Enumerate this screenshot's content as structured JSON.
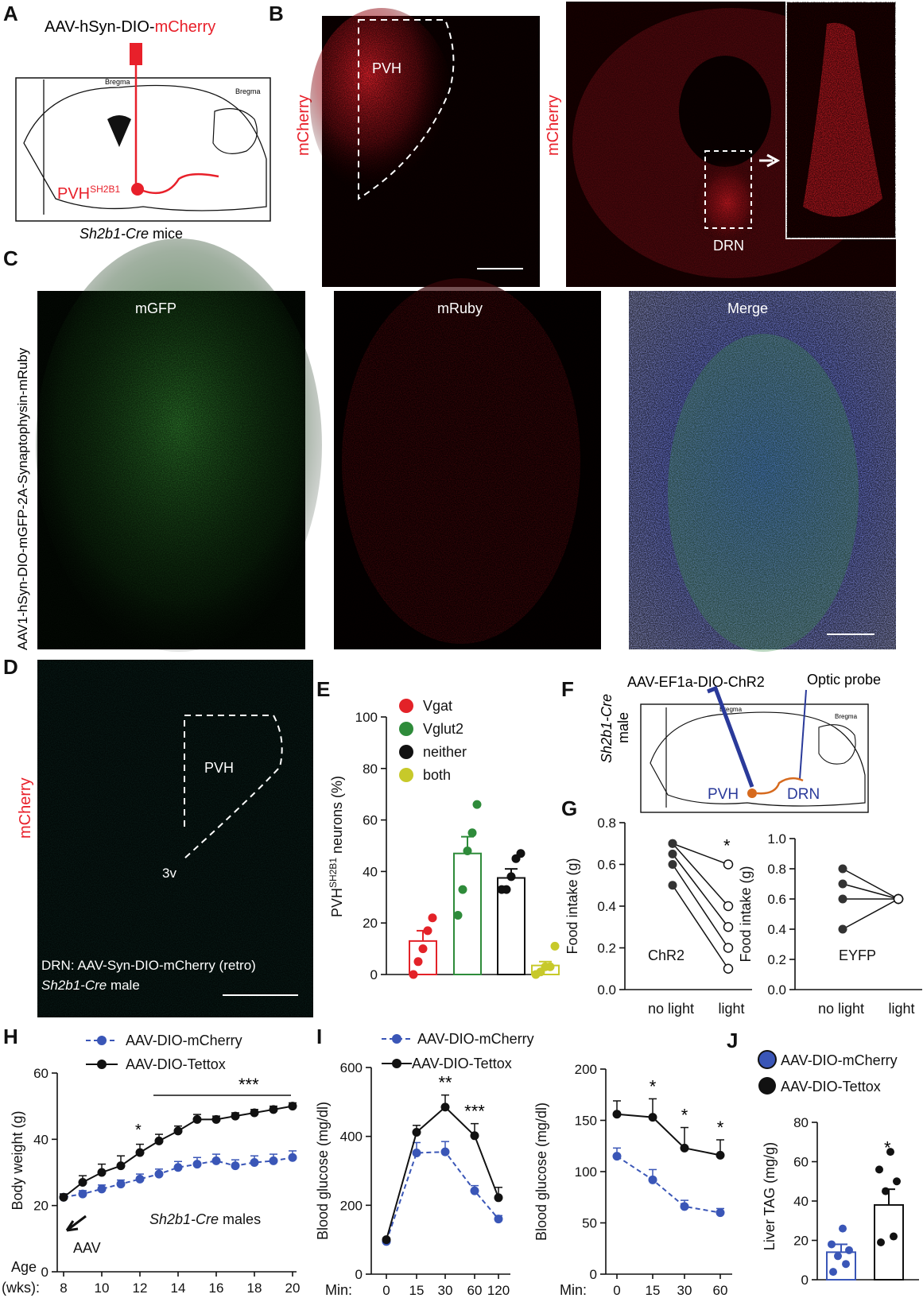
{
  "colors": {
    "mcherry_red": "#e8202a",
    "mcherry_blue_series": "#3a56b7",
    "tettox_black": "#111111",
    "vgat": "#e32228",
    "vglut2": "#2e8b3a",
    "neither": "#111111",
    "both": "#c7c92a",
    "chr2_blue": "#2a3a9a",
    "projection_orange": "#d66a1e"
  },
  "panels": {
    "A": {
      "label": "A",
      "virus": "AAV-hSyn-DIO-",
      "virus_red": "mCherry",
      "bregma1": "Bregma",
      "bregma2": "Bregma",
      "pvh_label": "PVH",
      "pvh_sup": "SH2B1",
      "mice_label": "Sh2b1-Cre",
      "mice_suffix": " mice"
    },
    "B": {
      "label": "B",
      "left_side": "mCherry",
      "pvh": "PVH",
      "right_side": "mCherry",
      "drn": "DRN"
    },
    "C": {
      "label": "C",
      "side": "AAV1-hSyn-DIO-mGFP-2A-Synaptophysin-mRuby",
      "img1": "mGFP",
      "img2": "mRuby",
      "img3": "Merge"
    },
    "D": {
      "label": "D",
      "side": "mCherry",
      "pvh": "PVH",
      "v3": "3v",
      "caption1": "DRN: AAV-Syn-DIO-mCherry (retro)",
      "caption2_italic": "Sh2b1-Cre",
      "caption2_rest": " male"
    },
    "F": {
      "label": "F",
      "virus": "AAV-EF1a-DIO-ChR2",
      "probe": "Optic probe",
      "side1": "Sh2b1-Cre",
      "side2": "male",
      "pvh": "PVH",
      "drn": "DRN",
      "bregma1": "Bregma",
      "bregma2": "Bregma"
    }
  },
  "chart_data": [
    {
      "id": "E",
      "panel_label": "E",
      "type": "bar",
      "categories": [
        "Vgat",
        "Vglut2",
        "neither",
        "both"
      ],
      "legend": [
        "Vgat",
        "Vglut2",
        "neither",
        "both"
      ],
      "ylabel_main": "PVH",
      "ylabel_sup": "SH2B1",
      "ylabel_rest": " neurons (%)",
      "ylim": [
        0,
        100
      ],
      "yticks": [
        "0",
        "20",
        "40",
        "60",
        "80",
        "100"
      ],
      "means": [
        13,
        47,
        37.5,
        3.5
      ],
      "sem": [
        4,
        6.5,
        3.5,
        1.5
      ],
      "points": [
        [
          0,
          5,
          10,
          17,
          22
        ],
        [
          23,
          33,
          48,
          55,
          66
        ],
        [
          33,
          33,
          38,
          45,
          47
        ],
        [
          0,
          1,
          3,
          3,
          11
        ]
      ]
    },
    {
      "id": "G1",
      "panel_label": "G",
      "type": "line",
      "ylabel": "Food intake (g)",
      "x_categories": [
        "no light",
        "light"
      ],
      "ylim": [
        0,
        0.8
      ],
      "yticks": [
        "0.0",
        "0.2",
        "0.4",
        "0.6",
        "0.8"
      ],
      "group_label": "ChR2",
      "star": "*",
      "pairs": [
        [
          0.7,
          0.6
        ],
        [
          0.7,
          0.4
        ],
        [
          0.65,
          0.3
        ],
        [
          0.6,
          0.2
        ],
        [
          0.5,
          0.1
        ]
      ]
    },
    {
      "id": "G2",
      "type": "line",
      "ylabel": "Food intake (g)",
      "x_categories": [
        "no light",
        "light"
      ],
      "ylim": [
        0,
        1.0
      ],
      "yticks": [
        "0.0",
        "0.2",
        "0.4",
        "0.6",
        "0.8",
        "1.0"
      ],
      "group_label": "EYFP",
      "pairs": [
        [
          0.8,
          0.6
        ],
        [
          0.7,
          0.6
        ],
        [
          0.6,
          0.6
        ],
        [
          0.4,
          0.6
        ]
      ]
    },
    {
      "id": "H",
      "panel_label": "H",
      "type": "line",
      "ylabel": "Body weight (g)",
      "xprefix": "Age",
      "xprefix2": "(wks):",
      "xlim": [
        8,
        20
      ],
      "ylim": [
        0,
        60
      ],
      "xticks": [
        "8",
        "10",
        "12",
        "14",
        "16",
        "18",
        "20"
      ],
      "yticks": [
        "0",
        "20",
        "40",
        "60"
      ],
      "aav_label": "AAV",
      "note_italic": "Sh2b1-Cre",
      "note_rest": " males",
      "stars": [
        "*",
        "***"
      ],
      "series": [
        {
          "name": "AAV-DIO-mCherry",
          "x": [
            8,
            9,
            10,
            11,
            12,
            13,
            14,
            15,
            16,
            17,
            18,
            19,
            20
          ],
          "y": [
            22.5,
            23.5,
            25,
            26.5,
            28,
            29.5,
            31.5,
            32.5,
            33.5,
            32,
            33,
            33.5,
            34.5
          ],
          "sem": [
            1,
            1,
            1.2,
            1.2,
            1.5,
            1.5,
            1.8,
            2,
            2,
            1.8,
            2,
            2,
            2
          ]
        },
        {
          "name": "AAV-DIO-Tettox",
          "x": [
            8,
            9,
            10,
            11,
            12,
            13,
            14,
            15,
            16,
            17,
            18,
            19,
            20
          ],
          "y": [
            22.5,
            27,
            30,
            32,
            36,
            39.5,
            42.5,
            46,
            46,
            47,
            48,
            49,
            50
          ],
          "sem": [
            1,
            2,
            2.5,
            3,
            2.5,
            2,
            1.5,
            1.5,
            1,
            1,
            1,
            1,
            1
          ]
        }
      ]
    },
    {
      "id": "I1",
      "panel_label": "I",
      "type": "line",
      "ylabel": "Blood glucose (mg/dl)",
      "xprefix": "Min:",
      "x_categories": [
        "0",
        "15",
        "30",
        "60",
        "120"
      ],
      "ylim": [
        0,
        600
      ],
      "yticks": [
        "0",
        "200",
        "400",
        "600"
      ],
      "stars": [
        {
          "x": "30",
          "label": "**"
        },
        {
          "x": "60",
          "label": "***"
        }
      ],
      "series": [
        {
          "name": "AAV-DIO-mCherry",
          "y": [
            95,
            352,
            355,
            242,
            160
          ],
          "sem": [
            5,
            30,
            30,
            15,
            10
          ]
        },
        {
          "name": "AAV-DIO-Tettox",
          "y": [
            100,
            412,
            485,
            402,
            222
          ],
          "sem": [
            5,
            20,
            35,
            35,
            30
          ]
        }
      ]
    },
    {
      "id": "I2",
      "type": "line",
      "ylabel": "Blood glucose (mg/dl)",
      "xprefix": "Min:",
      "x_categories": [
        "0",
        "15",
        "30",
        "60"
      ],
      "ylim": [
        0,
        200
      ],
      "yticks": [
        "0",
        "50",
        "100",
        "150",
        "200"
      ],
      "stars": [
        {
          "x": "15",
          "label": "*"
        },
        {
          "x": "30",
          "label": "*"
        },
        {
          "x": "60",
          "label": "*"
        }
      ],
      "series": [
        {
          "name": "AAV-DIO-mCherry",
          "y": [
            115,
            92,
            66,
            60
          ],
          "sem": [
            8,
            10,
            6,
            4
          ]
        },
        {
          "name": "AAV-DIO-Tettox",
          "y": [
            156,
            153,
            123,
            116
          ],
          "sem": [
            13,
            18,
            20,
            15
          ]
        }
      ]
    },
    {
      "id": "J",
      "panel_label": "J",
      "type": "bar",
      "ylabel": "Liver TAG (mg/g)",
      "ylim": [
        0,
        80
      ],
      "yticks": [
        "0",
        "20",
        "40",
        "60",
        "80"
      ],
      "legend": [
        "AAV-DIO-mCherry",
        "AAV-DIO-Tettox"
      ],
      "star": "*",
      "means": [
        14,
        38
      ],
      "sem": [
        4,
        8
      ],
      "points": [
        [
          4,
          8,
          12,
          15,
          18,
          26
        ],
        [
          19,
          22,
          45,
          50,
          56,
          65
        ]
      ]
    }
  ]
}
